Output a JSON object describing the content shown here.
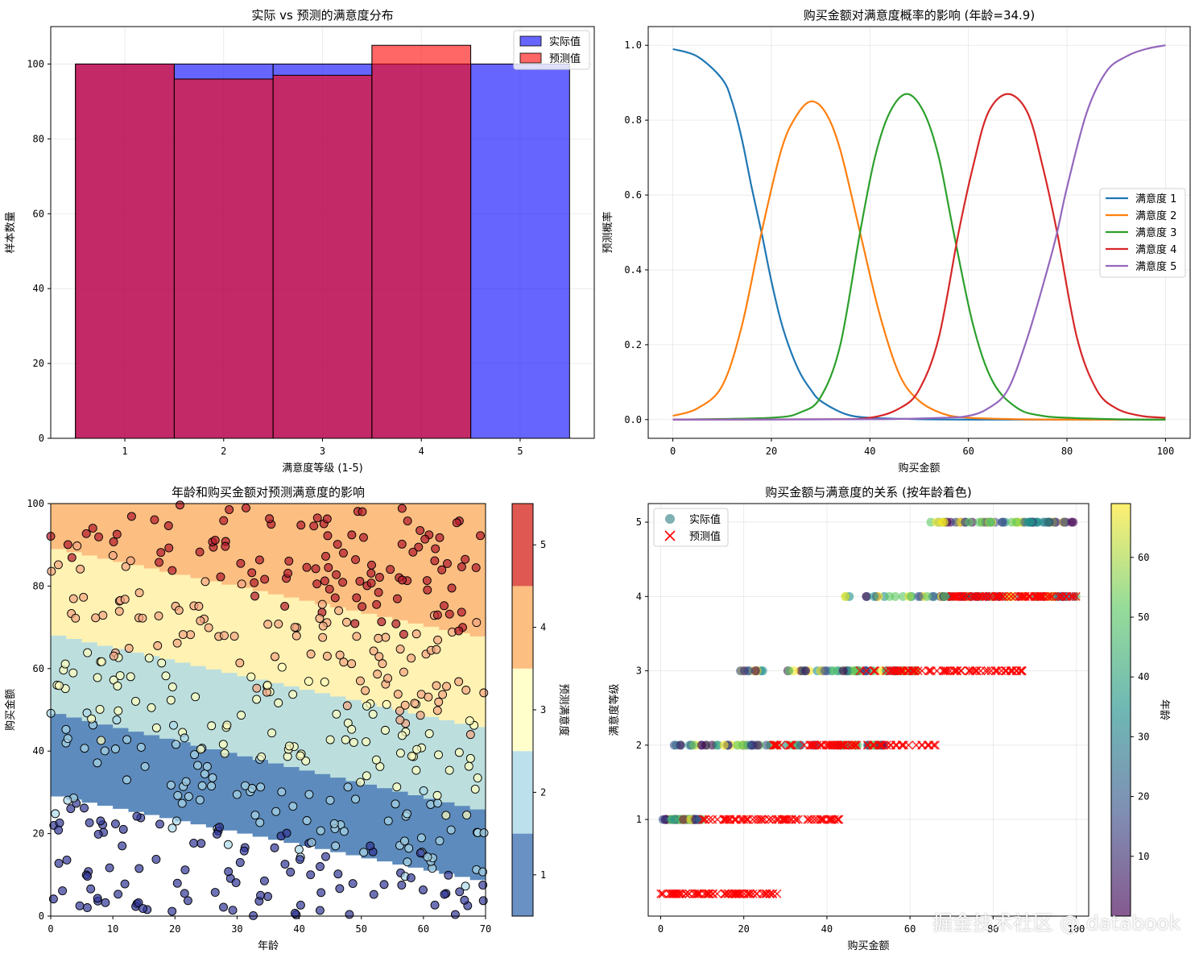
{
  "watermark": "掘金技术社区 @ databook",
  "chart_data": [
    {
      "type": "bar",
      "title": "实际 vs 预测的满意度分布",
      "xlabel": "满意度等级 (1-5)",
      "ylabel": "样本数量",
      "xlim": [
        0.25,
        5.75
      ],
      "ylim": [
        0,
        110
      ],
      "xticks": [
        1,
        2,
        3,
        4,
        5
      ],
      "yticks": [
        0,
        20,
        40,
        60,
        80,
        100
      ],
      "grid": true,
      "legend": "top-right",
      "categories": [
        1,
        2,
        3,
        4,
        5
      ],
      "series": [
        {
          "name": "实际值",
          "values": [
            100,
            100,
            100,
            100,
            100
          ],
          "color": "#0000ff",
          "alpha": 0.6
        },
        {
          "name": "预测值",
          "values": [
            100,
            96,
            97,
            105,
            0
          ],
          "color": "#ff0000",
          "alpha": 0.6
        }
      ]
    },
    {
      "type": "line",
      "title": "购买金额对满意度概率的影响 (年龄=34.9)",
      "xlabel": "购买金额",
      "ylabel": "预测概率",
      "xlim": [
        -5,
        105
      ],
      "ylim": [
        -0.05,
        1.05
      ],
      "xticks": [
        0,
        20,
        40,
        60,
        80,
        100
      ],
      "yticks": [
        0.0,
        0.2,
        0.4,
        0.6,
        0.8,
        1.0
      ],
      "grid": true,
      "legend": "center-right",
      "series": [
        {
          "name": "满意度 1",
          "color": "#1f77b4",
          "x": [
            0,
            5,
            10,
            12,
            14,
            16,
            18,
            20,
            22,
            24,
            26,
            28,
            30,
            35,
            40,
            50,
            60,
            80,
            100
          ],
          "y": [
            0.99,
            0.97,
            0.91,
            0.85,
            0.75,
            0.62,
            0.5,
            0.37,
            0.26,
            0.18,
            0.12,
            0.08,
            0.05,
            0.015,
            0.005,
            0.001,
            0.0,
            0.0,
            0.0
          ]
        },
        {
          "name": "满意度 2",
          "color": "#ff7f0e",
          "x": [
            0,
            5,
            10,
            14,
            18,
            22,
            25,
            28,
            31,
            34,
            38,
            42,
            46,
            50,
            55,
            60,
            70,
            80,
            100
          ],
          "y": [
            0.01,
            0.03,
            0.09,
            0.25,
            0.5,
            0.72,
            0.81,
            0.85,
            0.82,
            0.72,
            0.5,
            0.28,
            0.12,
            0.05,
            0.015,
            0.005,
            0.001,
            0.0,
            0.0
          ]
        },
        {
          "name": "满意度 3",
          "color": "#2ca02c",
          "x": [
            0,
            20,
            26,
            30,
            34,
            38,
            41,
            44,
            47.5,
            51,
            54,
            57,
            61,
            65,
            70,
            75,
            80,
            90,
            100
          ],
          "y": [
            0.0,
            0.005,
            0.02,
            0.06,
            0.2,
            0.5,
            0.7,
            0.82,
            0.87,
            0.82,
            0.7,
            0.5,
            0.25,
            0.1,
            0.03,
            0.01,
            0.005,
            0.001,
            0.0
          ]
        },
        {
          "name": "满意度 4",
          "color": "#d62728",
          "x": [
            0,
            30,
            40,
            46,
            50,
            54,
            58,
            61,
            64,
            68,
            72,
            75,
            78,
            82,
            86,
            90,
            95,
            100
          ],
          "y": [
            0.0,
            0.001,
            0.005,
            0.03,
            0.08,
            0.22,
            0.5,
            0.68,
            0.82,
            0.87,
            0.82,
            0.68,
            0.5,
            0.22,
            0.08,
            0.03,
            0.01,
            0.005
          ]
        },
        {
          "name": "满意度 5",
          "color": "#9467bd",
          "x": [
            0,
            40,
            55,
            60,
            64,
            68,
            72,
            76,
            78,
            80,
            84,
            88,
            92,
            96,
            100
          ],
          "y": [
            0.0,
            0.001,
            0.005,
            0.01,
            0.03,
            0.08,
            0.22,
            0.4,
            0.5,
            0.62,
            0.82,
            0.93,
            0.97,
            0.99,
            1.0
          ]
        }
      ]
    },
    {
      "type": "scatter",
      "title": "年龄和购买金额对预测满意度的影响",
      "xlabel": "年龄",
      "ylabel": "购买金额",
      "xlim": [
        0,
        70
      ],
      "ylim": [
        0,
        100
      ],
      "xticks": [
        0,
        10,
        20,
        30,
        40,
        50,
        60,
        70
      ],
      "yticks": [
        0,
        20,
        40,
        60,
        80,
        100
      ],
      "colorbar_label": "预测满意度",
      "colorbar_ticks": [
        1,
        2,
        3,
        4,
        5
      ],
      "colormap": "RdYlBu_r",
      "levels": [
        {
          "level": 1,
          "color": "#4575b4"
        },
        {
          "level": 2,
          "color": "#abd9e9"
        },
        {
          "level": 3,
          "color": "#ffffbf"
        },
        {
          "level": 4,
          "color": "#fdae61"
        },
        {
          "level": 5,
          "color": "#d73027"
        }
      ],
      "regions": [
        {
          "level": 0,
          "color": "#ffffff",
          "upper": [
            [
              0,
              29
            ],
            [
              70,
              8
            ]
          ]
        },
        {
          "level": 1,
          "color": "#4575b4",
          "upper": [
            [
              0,
              49
            ],
            [
              70,
              25
            ]
          ]
        },
        {
          "level": 2,
          "color": "#abd9e9",
          "upper": [
            [
              0,
              68
            ],
            [
              70,
              45
            ]
          ]
        },
        {
          "level": 3,
          "color": "#ffffbf",
          "upper": [
            [
              0,
              89
            ],
            [
              70,
              67
            ]
          ]
        },
        {
          "level": 4,
          "color": "#fdae61",
          "upper": [
            [
              0,
              100
            ],
            [
              70,
              100
            ]
          ]
        }
      ],
      "points_summary": "约500个样本点，按实际满意度着色，年龄0-70，购买金额0-100"
    },
    {
      "type": "scatter",
      "title": "购买金额与满意度的关系 (按年龄着色)",
      "xlabel": "购买金额",
      "ylabel": "满意度等级",
      "xlim": [
        -3,
        103
      ],
      "ylim": [
        -0.3,
        5.25
      ],
      "xticks": [
        0,
        20,
        40,
        60,
        80,
        100
      ],
      "yticks": [
        1,
        2,
        3,
        4,
        5
      ],
      "colorbar_label": "年龄",
      "colorbar_ticks": [
        10,
        20,
        30,
        40,
        50,
        60
      ],
      "colorbar_range": [
        0,
        69
      ],
      "colormap": "viridis",
      "legend": "top-left",
      "grid": true,
      "series": [
        {
          "name": "实际值",
          "marker": "circle",
          "color": "#5f9ea0",
          "ranges": [
            {
              "level": 1,
              "x": [
                0,
                10
              ]
            },
            {
              "level": 2,
              "x": [
                2,
                55
              ]
            },
            {
              "level": 3,
              "x": [
                18,
                62
              ]
            },
            {
              "level": 4,
              "x": [
                43,
                100
              ]
            },
            {
              "level": 5,
              "x": [
                62,
                100
              ]
            }
          ]
        },
        {
          "name": "预测值",
          "marker": "x",
          "color": "#ff0000",
          "ranges": [
            {
              "level": 0,
              "x": [
                0,
                28
              ]
            },
            {
              "level": 1,
              "x": [
                10,
                43
              ]
            },
            {
              "level": 2,
              "x": [
                27,
                67
              ]
            },
            {
              "level": 3,
              "x": [
                47,
                87
              ]
            },
            {
              "level": 4,
              "x": [
                70,
                100
              ]
            }
          ]
        }
      ]
    }
  ]
}
